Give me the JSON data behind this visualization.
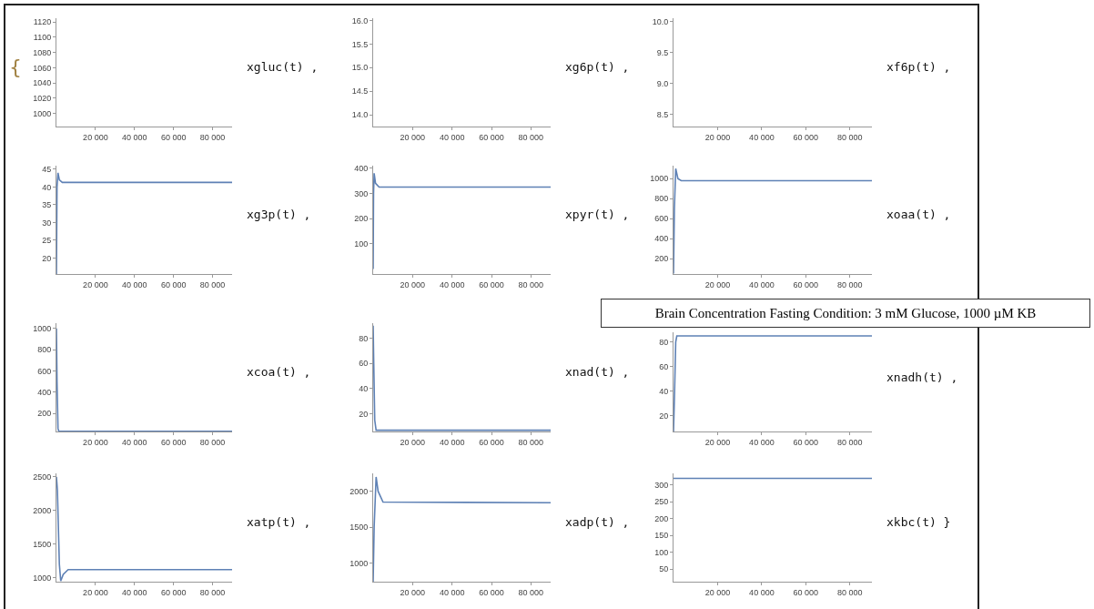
{
  "chart_data": [
    {
      "type": "line",
      "xlim": [
        0,
        90000
      ],
      "xticks": [
        {
          "value": 20000,
          "label": "20 000"
        },
        {
          "value": 40000,
          "label": "40 000"
        },
        {
          "value": 60000,
          "label": "60 000"
        },
        {
          "value": 80000,
          "label": "80 000"
        }
      ],
      "ylim": [
        983,
        1125
      ],
      "yticks": [
        1000,
        1020,
        1040,
        1060,
        1080,
        1100,
        1120
      ],
      "annotations": [
        "{",
        "xgluc(t) ,"
      ]
    },
    {
      "type": "line",
      "xlim": [
        0,
        90000
      ],
      "xticks": [
        {
          "value": 20000,
          "label": "20 000"
        },
        {
          "value": 40000,
          "label": "40 000"
        },
        {
          "value": 60000,
          "label": "60 000"
        },
        {
          "value": 80000,
          "label": "80 000"
        }
      ],
      "ylim": [
        13.75,
        16.05
      ],
      "yticks": [
        {
          "value": 14,
          "label": "14.0"
        },
        14.5,
        {
          "value": 15,
          "label": "15.0"
        },
        15.5,
        {
          "value": 16,
          "label": "16.0"
        }
      ],
      "annotations": [
        "xg6p(t) ,"
      ]
    },
    {
      "type": "line",
      "xlim": [
        0,
        90000
      ],
      "xticks": [
        {
          "value": 20000,
          "label": "20 000"
        },
        {
          "value": 40000,
          "label": "40 000"
        },
        {
          "value": 60000,
          "label": "60 000"
        },
        {
          "value": 80000,
          "label": "80 000"
        }
      ],
      "ylim": [
        8.3,
        10.05
      ],
      "yticks": [
        8.5,
        {
          "value": 9,
          "label": "9.0"
        },
        9.5,
        {
          "value": 10,
          "label": "10.0"
        }
      ],
      "annotations": [
        "xf6p(t) ,"
      ]
    },
    {
      "type": "line",
      "x": [
        0,
        300,
        800,
        1500,
        3000,
        90000
      ],
      "series": [
        {
          "color": "#5e81b5",
          "values": [
            15.5,
            40,
            44,
            42,
            41.3,
            41.3
          ]
        }
      ],
      "xlim": [
        0,
        90000
      ],
      "xticks": [
        {
          "value": 20000,
          "label": "20 000"
        },
        {
          "value": 40000,
          "label": "40 000"
        },
        {
          "value": 60000,
          "label": "60 000"
        },
        {
          "value": 80000,
          "label": "80 000"
        }
      ],
      "ylim": [
        15.5,
        46
      ],
      "yticks": [
        20,
        25,
        30,
        35,
        40,
        45
      ],
      "annotations": [
        "xg3p(t) ,"
      ]
    },
    {
      "type": "line",
      "x": [
        0,
        200,
        500,
        1200,
        3000,
        90000
      ],
      "series": [
        {
          "color": "#5e81b5",
          "values": [
            0,
            300,
            380,
            340,
            325,
            325
          ]
        }
      ],
      "xlim": [
        0,
        90000
      ],
      "xticks": [
        {
          "value": 20000,
          "label": "20 000"
        },
        {
          "value": 40000,
          "label": "40 000"
        },
        {
          "value": 60000,
          "label": "60 000"
        },
        {
          "value": 80000,
          "label": "80 000"
        }
      ],
      "ylim": [
        -20,
        410
      ],
      "yticks": [
        100,
        200,
        300,
        400
      ],
      "annotations": [
        "xpyr(t) ,"
      ]
    },
    {
      "type": "line",
      "x": [
        0,
        400,
        1000,
        2000,
        3500,
        90000
      ],
      "series": [
        {
          "color": "#5e81b5",
          "values": [
            50,
            700,
            1100,
            1000,
            980,
            980
          ]
        }
      ],
      "xlim": [
        0,
        90000
      ],
      "xticks": [
        {
          "value": 20000,
          "label": "20 000"
        },
        {
          "value": 40000,
          "label": "40 000"
        },
        {
          "value": 60000,
          "label": "60 000"
        },
        {
          "value": 80000,
          "label": "80 000"
        }
      ],
      "ylim": [
        46,
        1130
      ],
      "yticks": [
        200,
        400,
        600,
        800,
        1000
      ],
      "annotations": [
        "xoaa(t) ,"
      ]
    },
    {
      "type": "line",
      "x": [
        0,
        300,
        800,
        1200,
        90000
      ],
      "series": [
        {
          "color": "#5e81b5",
          "values": [
            1000,
            500,
            60,
            30,
            30
          ]
        }
      ],
      "xlim": [
        0,
        90000
      ],
      "xticks": [
        {
          "value": 20000,
          "label": "20 000"
        },
        {
          "value": 40000,
          "label": "40 000"
        },
        {
          "value": 60000,
          "label": "60 000"
        },
        {
          "value": 80000,
          "label": "80 000"
        }
      ],
      "ylim": [
        29,
        1050
      ],
      "yticks": [
        200,
        400,
        600,
        800,
        1000
      ],
      "annotations": [
        "xcoa(t) ,"
      ]
    },
    {
      "type": "line",
      "x": [
        0,
        300,
        800,
        1500,
        90000
      ],
      "series": [
        {
          "color": "#5e81b5",
          "values": [
            90,
            60,
            15,
            7,
            7
          ]
        }
      ],
      "xlim": [
        0,
        90000
      ],
      "xticks": [
        {
          "value": 20000,
          "label": "20 000"
        },
        {
          "value": 40000,
          "label": "40 000"
        },
        {
          "value": 60000,
          "label": "60 000"
        },
        {
          "value": 80000,
          "label": "80 000"
        }
      ],
      "ylim": [
        6,
        92
      ],
      "yticks": [
        20,
        40,
        60,
        80
      ],
      "annotations": [
        "xnad(t) ,"
      ]
    },
    {
      "type": "line",
      "x": [
        0,
        500,
        1000,
        1500,
        90000
      ],
      "series": [
        {
          "color": "#5e81b5",
          "values": [
            7,
            40,
            80,
            85,
            85
          ]
        }
      ],
      "xlim": [
        0,
        90000
      ],
      "xticks": [
        {
          "value": 20000,
          "label": "20 000"
        },
        {
          "value": 40000,
          "label": "40 000"
        },
        {
          "value": 60000,
          "label": "60 000"
        },
        {
          "value": 80000,
          "label": "80 000"
        }
      ],
      "ylim": [
        7,
        88
      ],
      "yticks": [
        20,
        40,
        60,
        80
      ],
      "annotations": [
        "xnadh(t) ,",
        "Brain Concentration Fasting Condition: 3 mM Glucose, 1000 µM KB"
      ]
    },
    {
      "type": "line",
      "x": [
        0,
        500,
        1500,
        2200,
        3500,
        6000,
        90000
      ],
      "series": [
        {
          "color": "#5e81b5",
          "values": [
            2500,
            2300,
            1200,
            950,
            1050,
            1120,
            1120
          ]
        }
      ],
      "xlim": [
        0,
        90000
      ],
      "xticks": [
        {
          "value": 20000,
          "label": "20 000"
        },
        {
          "value": 40000,
          "label": "40 000"
        },
        {
          "value": 60000,
          "label": "60 000"
        },
        {
          "value": 80000,
          "label": "80 000"
        }
      ],
      "ylim": [
        940,
        2550
      ],
      "yticks": [
        1000,
        1500,
        2000,
        2500
      ],
      "annotations": [
        "xatp(t) ,"
      ]
    },
    {
      "type": "line",
      "x": [
        0,
        500,
        1500,
        2500,
        5000,
        90000
      ],
      "series": [
        {
          "color": "#5e81b5",
          "values": [
            740,
            1500,
            2200,
            2000,
            1850,
            1840
          ]
        }
      ],
      "xlim": [
        0,
        90000
      ],
      "xticks": [
        {
          "value": 20000,
          "label": "20 000"
        },
        {
          "value": 40000,
          "label": "40 000"
        },
        {
          "value": 60000,
          "label": "60 000"
        },
        {
          "value": 80000,
          "label": "80 000"
        }
      ],
      "ylim": [
        740,
        2250
      ],
      "yticks": [
        1000,
        1500,
        2000
      ],
      "annotations": [
        "xadp(t) ,"
      ]
    },
    {
      "type": "line",
      "x": [
        0,
        90000
      ],
      "series": [
        {
          "color": "#5e81b5",
          "values": [
            320,
            320
          ]
        }
      ],
      "xlim": [
        0,
        90000
      ],
      "xticks": [
        {
          "value": 20000,
          "label": "20 000"
        },
        {
          "value": 40000,
          "label": "40 000"
        },
        {
          "value": 60000,
          "label": "60 000"
        },
        {
          "value": 80000,
          "label": "80 000"
        }
      ],
      "ylim": [
        12,
        335
      ],
      "yticks": [
        50,
        100,
        150,
        200,
        250,
        300
      ],
      "annotations": [
        "xkbc(t) }"
      ]
    }
  ]
}
